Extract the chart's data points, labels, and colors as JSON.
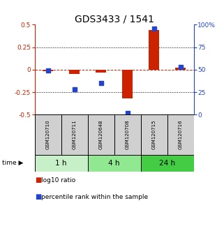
{
  "title": "GDS3433 / 1541",
  "samples": [
    "GSM120710",
    "GSM120711",
    "GSM120648",
    "GSM120708",
    "GSM120715",
    "GSM120716"
  ],
  "groups": [
    {
      "label": "1 h",
      "indices": [
        0,
        1
      ],
      "color": "#c8f0c8"
    },
    {
      "label": "4 h",
      "indices": [
        2,
        3
      ],
      "color": "#90e890"
    },
    {
      "label": "24 h",
      "indices": [
        4,
        5
      ],
      "color": "#44cc44"
    }
  ],
  "log10_ratio": [
    -0.02,
    -0.05,
    -0.03,
    -0.32,
    0.44,
    0.02
  ],
  "percentile_rank": [
    49,
    28,
    35,
    2,
    96,
    53
  ],
  "bar_color": "#cc2200",
  "dot_color": "#2244cc",
  "ylim_left": [
    -0.5,
    0.5
  ],
  "ylim_right": [
    0,
    100
  ],
  "yticks_left": [
    -0.5,
    -0.25,
    0.0,
    0.25,
    0.5
  ],
  "yticks_right": [
    0,
    25,
    50,
    75,
    100
  ],
  "background_main": "#ffffff",
  "background_sample": "#d0d0d0",
  "title_fontsize": 10,
  "legend_red_label": "log10 ratio",
  "legend_blue_label": "percentile rank within the sample"
}
